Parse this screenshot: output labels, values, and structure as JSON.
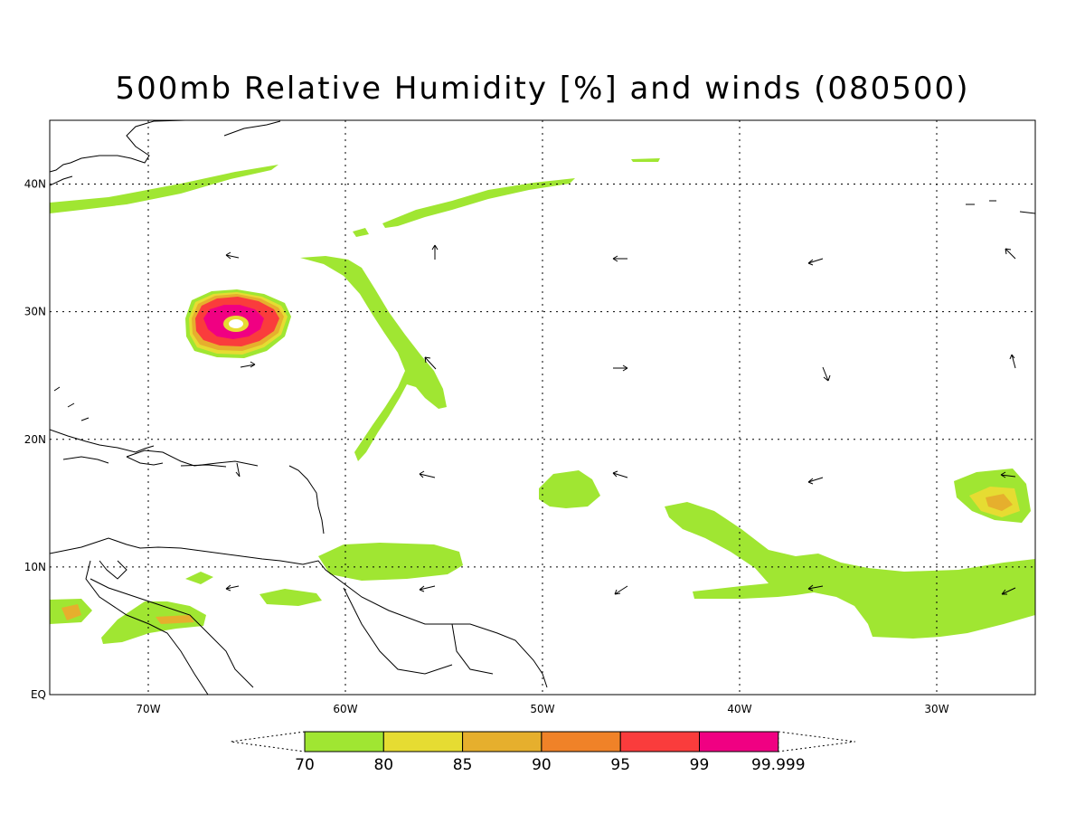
{
  "title": "500mb Relative Humidity [%] and winds (080500)",
  "map": {
    "lon_range": [
      -75,
      -25
    ],
    "lat_range": [
      0,
      45
    ],
    "lat_ticks": [
      {
        "value": 40,
        "label": "40N"
      },
      {
        "value": 30,
        "label": "30N"
      },
      {
        "value": 20,
        "label": "20N"
      },
      {
        "value": 10,
        "label": "10N"
      },
      {
        "value": 0,
        "label": "EQ"
      }
    ],
    "lon_ticks": [
      {
        "value": -70,
        "label": "70W"
      },
      {
        "value": -60,
        "label": "60W"
      },
      {
        "value": -50,
        "label": "50W"
      },
      {
        "value": -40,
        "label": "40W"
      },
      {
        "value": -30,
        "label": "30W"
      }
    ],
    "grid": "dotted"
  },
  "colorbar": {
    "bins": [
      {
        "label": "70",
        "color": "#a0e632"
      },
      {
        "label": "80",
        "color": "#e6dc32"
      },
      {
        "label": "85",
        "color": "#e6af2d"
      },
      {
        "label": "90",
        "color": "#f08228"
      },
      {
        "label": "95",
        "color": "#fa3c3c"
      },
      {
        "label": "99",
        "color": "#f00082"
      }
    ],
    "end_label": "99.999"
  }
}
